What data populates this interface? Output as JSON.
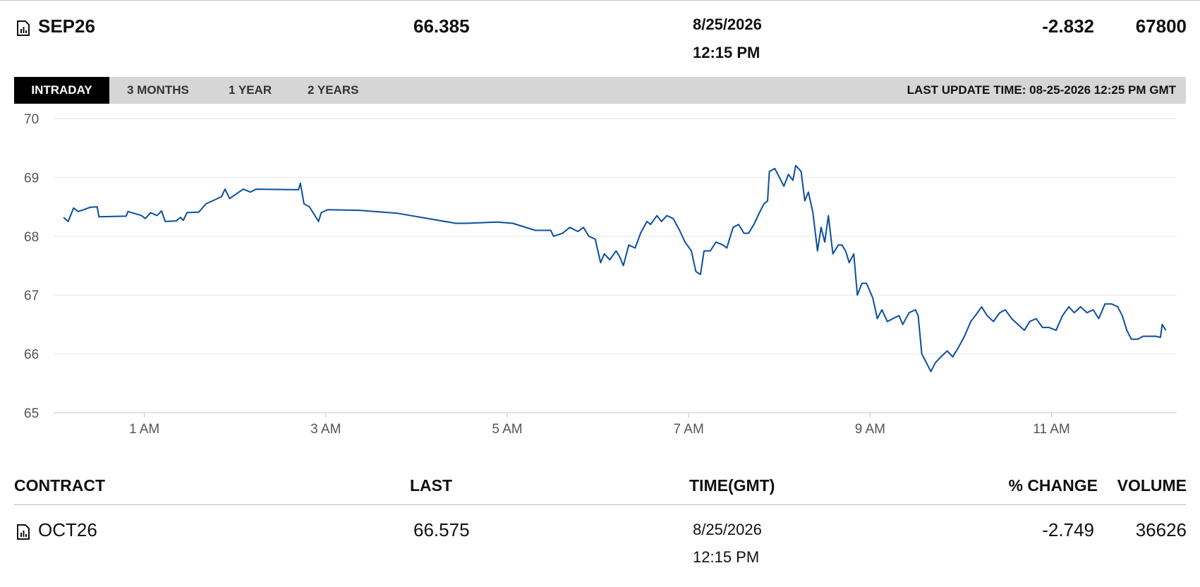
{
  "header": {
    "contract": "SEP26",
    "last": "66.385",
    "date": "8/25/2026",
    "time": "12:15 PM",
    "change": "-2.832",
    "volume": "67800"
  },
  "tabs": [
    "INTRADAY",
    "3 MONTHS",
    "1 YEAR",
    "2 YEARS"
  ],
  "last_update": "LAST UPDATE TIME: 08-25-2026 12:25 PM GMT",
  "chart_data": {
    "type": "line",
    "x": [
      0.11,
      0.16,
      0.22,
      0.27,
      0.33,
      0.4,
      0.48,
      0.5,
      0.8,
      0.82,
      0.97,
      1.01,
      1.07,
      1.14,
      1.19,
      1.23,
      1.35,
      1.4,
      1.43,
      1.47,
      1.6,
      1.68,
      1.85,
      1.89,
      1.94,
      2.09,
      2.17,
      2.23,
      2.7,
      2.72,
      2.76,
      2.82,
      2.86,
      2.92,
      2.95,
      3.02,
      3.37,
      3.79,
      4.43,
      4.55,
      4.89,
      5.06,
      5.31,
      5.48,
      5.51,
      5.61,
      5.69,
      5.78,
      5.84,
      5.9,
      5.97,
      6.03,
      6.07,
      6.13,
      6.2,
      6.24,
      6.28,
      6.34,
      6.41,
      6.47,
      6.54,
      6.58,
      6.65,
      6.7,
      6.76,
      6.83,
      6.9,
      6.96,
      7.03,
      7.08,
      7.13,
      7.17,
      7.24,
      7.3,
      7.38,
      7.42,
      7.49,
      7.55,
      7.61,
      7.66,
      7.72,
      7.78,
      7.83,
      7.87,
      7.89,
      7.95,
      8.0,
      8.05,
      8.1,
      8.15,
      8.18,
      8.24,
      8.28,
      8.32,
      8.37,
      8.42,
      8.46,
      8.5,
      8.54,
      8.59,
      8.65,
      8.69,
      8.73,
      8.77,
      8.82,
      8.86,
      8.91,
      8.96,
      9.03,
      9.08,
      9.13,
      9.19,
      9.25,
      9.32,
      9.36,
      9.43,
      9.5,
      9.53,
      9.57,
      9.62,
      9.67,
      9.72,
      9.78,
      9.85,
      9.91,
      9.97,
      10.04,
      10.11,
      10.16,
      10.23,
      10.29,
      10.36,
      10.43,
      10.49,
      10.56,
      10.63,
      10.7,
      10.76,
      10.83,
      10.9,
      10.97,
      11.05,
      11.12,
      11.19,
      11.25,
      11.32,
      11.39,
      11.46,
      11.52,
      11.59,
      11.66,
      11.73,
      11.78,
      11.83,
      11.88,
      11.95,
      12.01,
      12.08,
      12.15,
      12.2,
      12.22,
      12.26
    ],
    "series": [
      {
        "color": "#0b4f9e",
        "values": [
          68.32,
          68.25,
          68.48,
          68.42,
          68.45,
          68.49,
          68.5,
          68.33,
          68.34,
          68.42,
          68.35,
          68.3,
          68.4,
          68.35,
          68.43,
          68.25,
          68.26,
          68.32,
          68.27,
          68.4,
          68.41,
          68.55,
          68.67,
          68.8,
          68.64,
          68.8,
          68.75,
          68.8,
          68.79,
          68.9,
          68.55,
          68.5,
          68.4,
          68.25,
          68.4,
          68.45,
          68.44,
          68.39,
          68.22,
          68.22,
          68.24,
          68.22,
          68.1,
          68.1,
          68.0,
          68.05,
          68.15,
          68.08,
          68.15,
          68.0,
          67.95,
          67.55,
          67.7,
          67.6,
          67.75,
          67.65,
          67.5,
          67.85,
          67.8,
          68.05,
          68.25,
          68.2,
          68.35,
          68.25,
          68.35,
          68.3,
          68.1,
          67.9,
          67.75,
          67.4,
          67.35,
          67.75,
          67.75,
          67.9,
          67.85,
          67.8,
          68.15,
          68.2,
          68.05,
          68.05,
          68.2,
          68.4,
          68.55,
          68.6,
          69.1,
          69.15,
          69.0,
          68.85,
          69.05,
          68.95,
          69.2,
          69.1,
          68.6,
          68.75,
          68.4,
          67.75,
          68.15,
          67.9,
          68.35,
          67.7,
          67.85,
          67.85,
          67.75,
          67.55,
          67.7,
          67.0,
          67.2,
          67.2,
          66.95,
          66.6,
          66.75,
          66.55,
          66.6,
          66.65,
          66.5,
          66.7,
          66.75,
          66.65,
          66.0,
          65.85,
          65.7,
          65.85,
          65.95,
          66.05,
          65.95,
          66.1,
          66.3,
          66.55,
          66.65,
          66.8,
          66.65,
          66.55,
          66.7,
          66.75,
          66.6,
          66.5,
          66.4,
          66.55,
          66.6,
          66.45,
          66.45,
          66.4,
          66.65,
          66.8,
          66.7,
          66.8,
          66.7,
          66.75,
          66.6,
          66.85,
          66.85,
          66.8,
          66.65,
          66.4,
          66.25,
          66.25,
          66.3,
          66.3,
          66.3,
          66.28,
          66.5,
          66.4
        ]
      }
    ],
    "xlim": [
      0,
      12.38
    ],
    "ylim": [
      65,
      70
    ],
    "yticks": [
      65,
      66,
      67,
      68,
      69,
      70
    ],
    "xticks": [
      {
        "value": 1,
        "label": "1 AM"
      },
      {
        "value": 3,
        "label": "3 AM"
      },
      {
        "value": 5,
        "label": "5 AM"
      },
      {
        "value": 7,
        "label": "7 AM"
      },
      {
        "value": 9,
        "label": "9 AM"
      },
      {
        "value": 11,
        "label": "11 AM"
      }
    ],
    "grid": true
  },
  "table": {
    "columns": [
      "CONTRACT",
      "LAST",
      "TIME(GMT)",
      "% CHANGE",
      "VOLUME"
    ],
    "rows": [
      {
        "contract": "OCT26",
        "last": "66.575",
        "date": "8/25/2026",
        "time": "12:15 PM",
        "change": "-2.749",
        "volume": "36626"
      }
    ]
  }
}
